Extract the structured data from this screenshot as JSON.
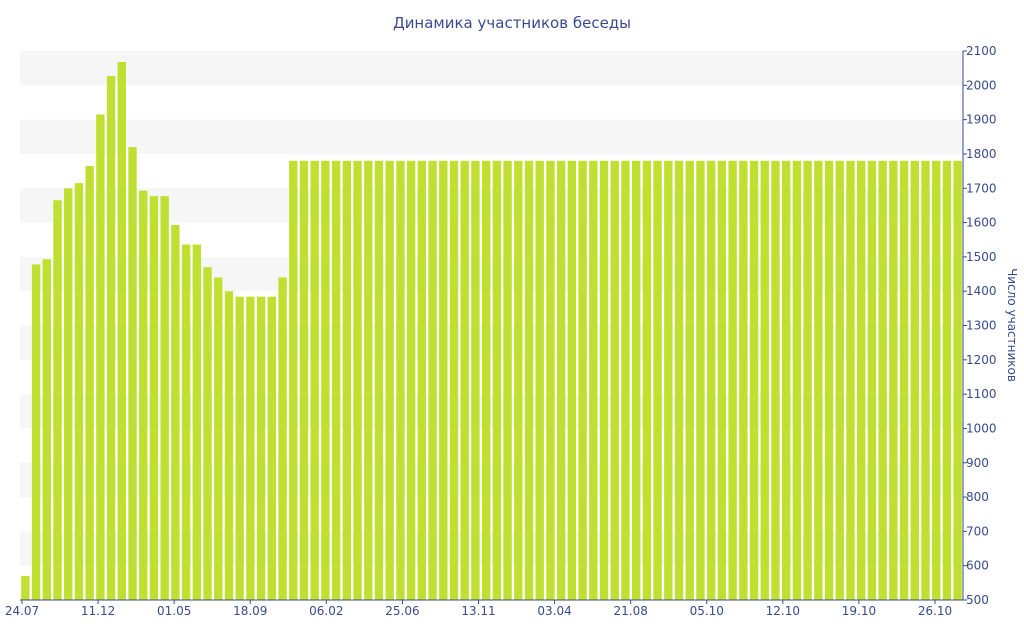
{
  "chart_data": {
    "type": "bar",
    "title": "Динамика участников беседы",
    "xlabel": "",
    "ylabel": "Число участников",
    "ylim": [
      500,
      2100
    ],
    "y_ticks": [
      500,
      600,
      700,
      800,
      900,
      1000,
      1100,
      1200,
      1300,
      1400,
      1500,
      1600,
      1700,
      1800,
      1900,
      2000,
      2100
    ],
    "y_axis_position": "right",
    "grid": "alternating horizontal bands",
    "x_tick_labels": [
      "24.07",
      "11.12",
      "01.05",
      "18.09",
      "06.02",
      "25.06",
      "13.11",
      "03.04",
      "21.08",
      "05.10",
      "12.10",
      "19.10",
      "26.10"
    ],
    "values": [
      570,
      1478,
      1493,
      1665,
      1700,
      1715,
      1765,
      1915,
      2027,
      2068,
      1820,
      1693,
      1677,
      1677,
      1593,
      1536,
      1536,
      1470,
      1440,
      1400,
      1384,
      1384,
      1384,
      1384,
      1440,
      1780,
      1780,
      1780,
      1780,
      1780,
      1780,
      1780,
      1780,
      1780,
      1780,
      1780,
      1780,
      1780,
      1780,
      1780,
      1780,
      1780,
      1780,
      1780,
      1780,
      1780,
      1780,
      1780,
      1780,
      1780,
      1780,
      1780,
      1780,
      1780,
      1780,
      1780,
      1780,
      1780,
      1780,
      1780,
      1780,
      1780,
      1780,
      1780,
      1780,
      1780,
      1780,
      1780,
      1780,
      1780,
      1780,
      1780,
      1780,
      1780,
      1780,
      1780,
      1780,
      1780,
      1780,
      1780,
      1780,
      1780,
      1780,
      1780,
      1780,
      1780,
      1780,
      1780
    ],
    "colors": {
      "bar": "#bfe031",
      "text": "#3a4a8c",
      "band": "#f6f6f6"
    }
  }
}
